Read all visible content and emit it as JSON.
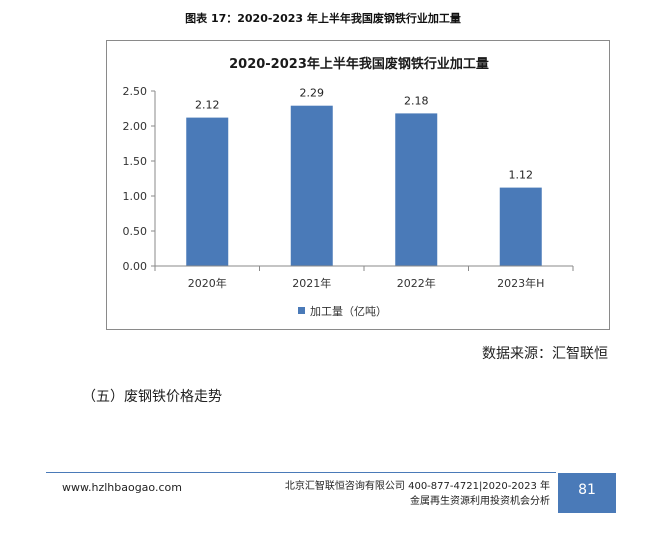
{
  "caption": "图表 17：2020-2023 年上半年我国废钢铁行业加工量",
  "chart_data": {
    "type": "bar",
    "title": "2020-2023年上半年我国废钢铁行业加工量",
    "categories": [
      "2020年",
      "2021年",
      "2022年",
      "2023年H"
    ],
    "series": [
      {
        "name": "加工量（亿吨）",
        "values": [
          2.12,
          2.29,
          2.18,
          1.12
        ]
      }
    ],
    "data_labels": [
      "2.12",
      "2.29",
      "2.18",
      "1.12"
    ],
    "yticks": [
      "0.00",
      "0.50",
      "1.00",
      "1.50",
      "2.00",
      "2.50"
    ],
    "ylim": [
      0,
      2.5
    ],
    "grid": false,
    "legend": "bottom",
    "bar_color": "#4a7ab8"
  },
  "source": "数据来源：汇智联恒",
  "section_heading": "（五）废钢铁价格走势",
  "footer": {
    "url": "www.hzlhbaogao.com",
    "info_line1": "北京汇智联恒咨询有限公司 400-877-4721|2020-2023 年",
    "info_line2": "金属再生资源利用投资机会分析",
    "page_number": "81"
  }
}
